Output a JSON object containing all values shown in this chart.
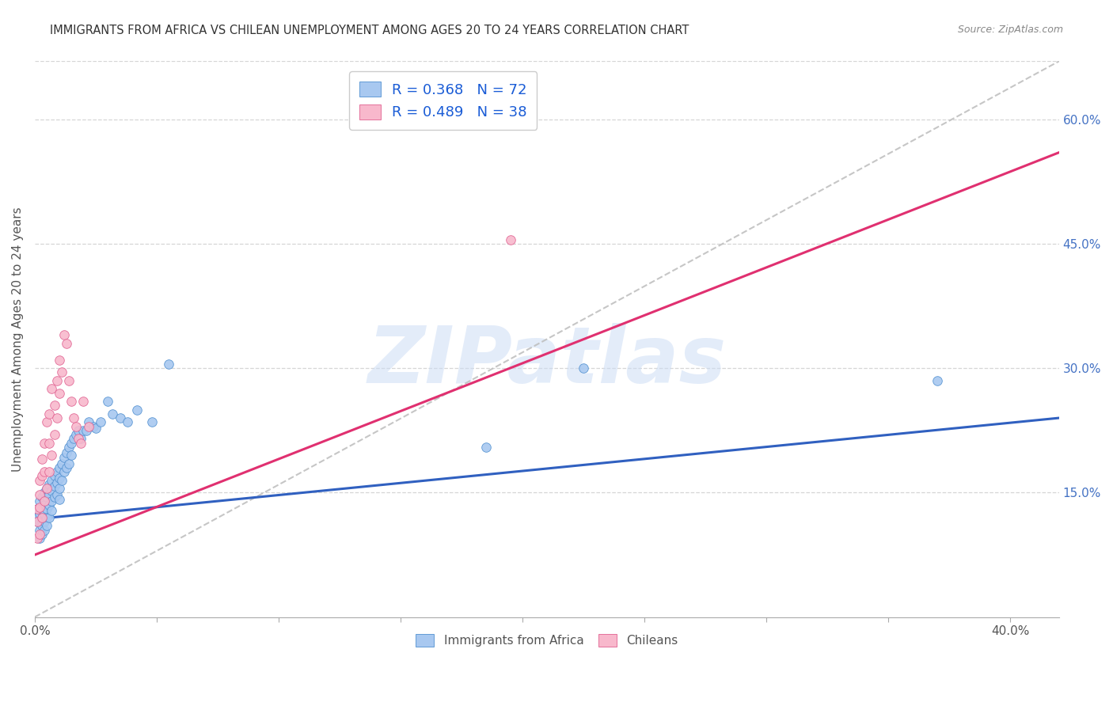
{
  "title": "IMMIGRANTS FROM AFRICA VS CHILEAN UNEMPLOYMENT AMONG AGES 20 TO 24 YEARS CORRELATION CHART",
  "source": "Source: ZipAtlas.com",
  "ylabel": "Unemployment Among Ages 20 to 24 years",
  "xlim": [
    0.0,
    0.42
  ],
  "ylim": [
    0.0,
    0.67
  ],
  "y_ticks_right": [
    0.15,
    0.3,
    0.45,
    0.6
  ],
  "y_tick_labels_right": [
    "15.0%",
    "30.0%",
    "45.0%",
    "60.0%"
  ],
  "x_tick_positions": [
    0.0,
    0.05,
    0.1,
    0.15,
    0.2,
    0.25,
    0.3,
    0.35,
    0.4
  ],
  "x_tick_labels": [
    "0.0%",
    "",
    "",
    "",
    "",
    "",
    "",
    "",
    "40.0%"
  ],
  "legend_line1": "R = 0.368   N = 72",
  "legend_line2": "R = 0.489   N = 38",
  "color_blue_fill": "#a8c8f0",
  "color_blue_edge": "#5090d0",
  "color_pink_fill": "#f8b8cc",
  "color_pink_edge": "#e06090",
  "color_line_blue": "#3060c0",
  "color_line_pink": "#e03070",
  "color_line_gray": "#c0c0c0",
  "watermark": "ZIPatlas",
  "blue_trend_x": [
    0.0,
    0.42
  ],
  "blue_trend_y": [
    0.118,
    0.24
  ],
  "pink_trend_x": [
    0.0,
    0.42
  ],
  "pink_trend_y": [
    0.075,
    0.56
  ],
  "gray_trend_x": [
    0.0,
    0.42
  ],
  "gray_trend_y": [
    0.0,
    0.67
  ],
  "africa_x": [
    0.001,
    0.001,
    0.001,
    0.002,
    0.002,
    0.002,
    0.002,
    0.002,
    0.003,
    0.003,
    0.003,
    0.003,
    0.003,
    0.003,
    0.004,
    0.004,
    0.004,
    0.004,
    0.004,
    0.005,
    0.005,
    0.005,
    0.005,
    0.005,
    0.006,
    0.006,
    0.006,
    0.006,
    0.007,
    0.007,
    0.007,
    0.007,
    0.008,
    0.008,
    0.008,
    0.009,
    0.009,
    0.009,
    0.01,
    0.01,
    0.01,
    0.01,
    0.011,
    0.011,
    0.012,
    0.012,
    0.013,
    0.013,
    0.014,
    0.014,
    0.015,
    0.015,
    0.016,
    0.017,
    0.018,
    0.019,
    0.02,
    0.021,
    0.022,
    0.024,
    0.025,
    0.027,
    0.03,
    0.032,
    0.035,
    0.038,
    0.042,
    0.048,
    0.055,
    0.185,
    0.225,
    0.37
  ],
  "africa_y": [
    0.13,
    0.12,
    0.115,
    0.14,
    0.125,
    0.115,
    0.105,
    0.095,
    0.145,
    0.13,
    0.12,
    0.115,
    0.11,
    0.1,
    0.15,
    0.135,
    0.125,
    0.115,
    0.105,
    0.155,
    0.145,
    0.13,
    0.12,
    0.11,
    0.16,
    0.148,
    0.135,
    0.12,
    0.165,
    0.152,
    0.14,
    0.128,
    0.17,
    0.158,
    0.145,
    0.175,
    0.162,
    0.148,
    0.18,
    0.168,
    0.155,
    0.142,
    0.185,
    0.165,
    0.192,
    0.175,
    0.198,
    0.18,
    0.205,
    0.185,
    0.21,
    0.195,
    0.215,
    0.22,
    0.225,
    0.215,
    0.225,
    0.225,
    0.235,
    0.23,
    0.228,
    0.235,
    0.26,
    0.245,
    0.24,
    0.235,
    0.25,
    0.235,
    0.305,
    0.205,
    0.3,
    0.285
  ],
  "chilean_x": [
    0.001,
    0.001,
    0.001,
    0.002,
    0.002,
    0.002,
    0.002,
    0.003,
    0.003,
    0.003,
    0.004,
    0.004,
    0.004,
    0.005,
    0.005,
    0.006,
    0.006,
    0.006,
    0.007,
    0.007,
    0.008,
    0.008,
    0.009,
    0.009,
    0.01,
    0.01,
    0.011,
    0.012,
    0.013,
    0.014,
    0.015,
    0.016,
    0.017,
    0.018,
    0.019,
    0.02,
    0.022,
    0.195
  ],
  "chilean_y": [
    0.13,
    0.115,
    0.095,
    0.165,
    0.148,
    0.132,
    0.1,
    0.19,
    0.17,
    0.12,
    0.21,
    0.175,
    0.14,
    0.235,
    0.155,
    0.245,
    0.21,
    0.175,
    0.275,
    0.195,
    0.255,
    0.22,
    0.285,
    0.24,
    0.31,
    0.27,
    0.295,
    0.34,
    0.33,
    0.285,
    0.26,
    0.24,
    0.23,
    0.215,
    0.21,
    0.26,
    0.23,
    0.455
  ]
}
